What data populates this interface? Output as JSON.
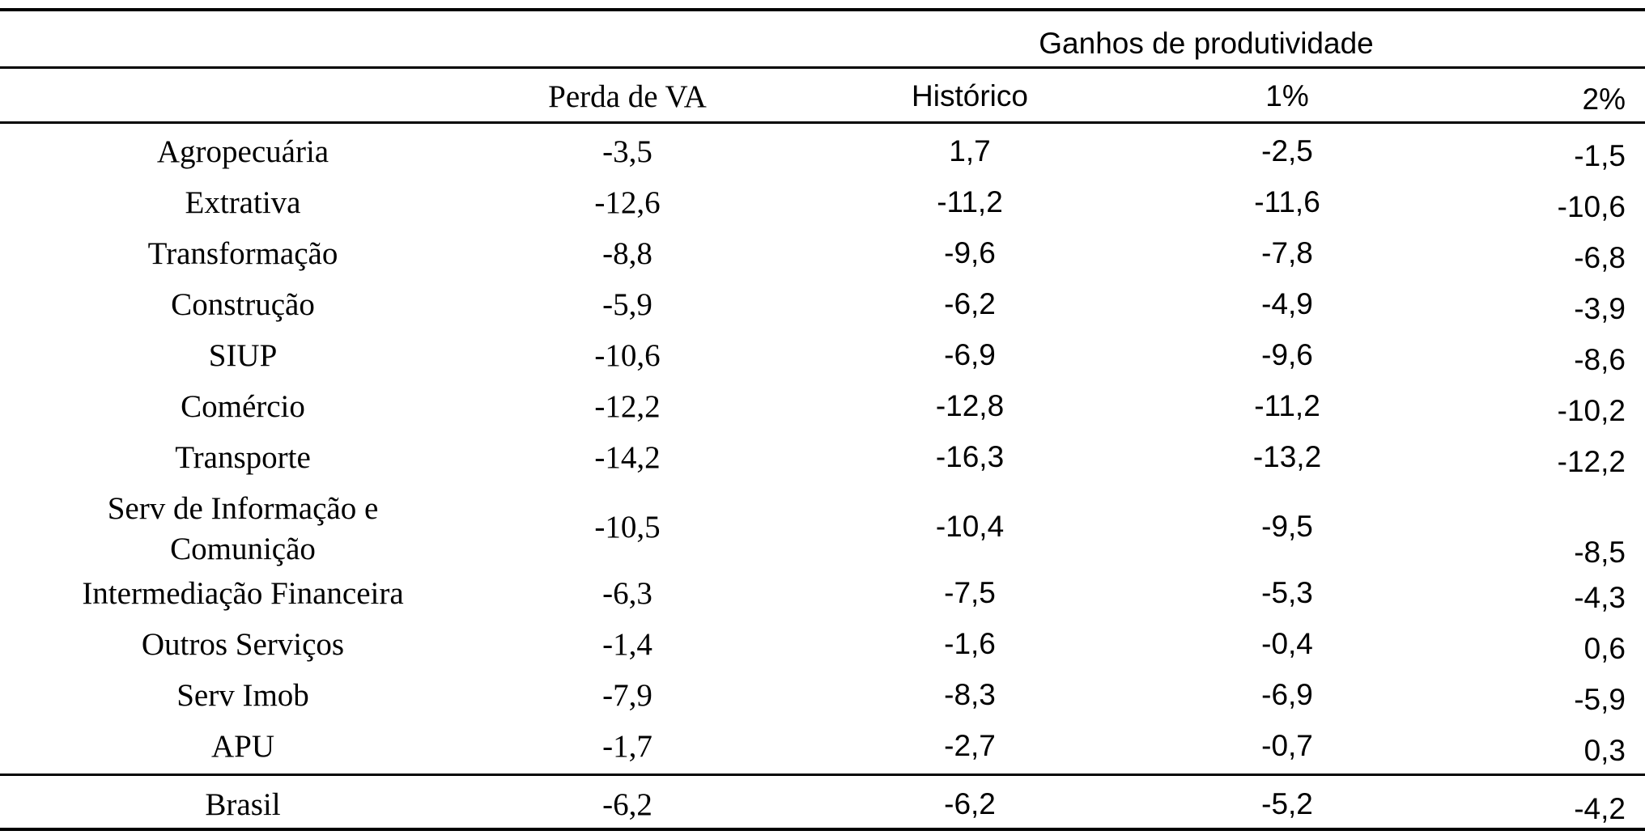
{
  "header": {
    "group_label": "Ganhos de produtividade",
    "columns": [
      "Perda de VA",
      "Histórico",
      "1%",
      "2%"
    ]
  },
  "rows": [
    {
      "label": "Agropecuária",
      "values": [
        "-3,5",
        "1,7",
        "-2,5",
        "-1,5"
      ]
    },
    {
      "label": "Extrativa",
      "values": [
        "-12,6",
        "-11,2",
        "-11,6",
        "-10,6"
      ]
    },
    {
      "label": "Transformação",
      "values": [
        "-8,8",
        "-9,6",
        "-7,8",
        "-6,8"
      ]
    },
    {
      "label": "Construção",
      "values": [
        "-5,9",
        "-6,2",
        "-4,9",
        "-3,9"
      ]
    },
    {
      "label": "SIUP",
      "values": [
        "-10,6",
        "-6,9",
        "-9,6",
        "-8,6"
      ]
    },
    {
      "label": "Comércio",
      "values": [
        "-12,2",
        "-12,8",
        "-11,2",
        "-10,2"
      ]
    },
    {
      "label": "Transporte",
      "values": [
        "-14,2",
        "-16,3",
        "-13,2",
        "-12,2"
      ]
    },
    {
      "label_line1": "Serv de Informação e",
      "label_line2": "Comunição",
      "values": [
        "-10,5",
        "-10,4",
        "-9,5",
        "-8,5"
      ]
    },
    {
      "label": "Intermediação Financeira",
      "values": [
        "-6,3",
        "-7,5",
        "-5,3",
        "-4,3"
      ]
    },
    {
      "label": "Outros Serviços",
      "values": [
        "-1,4",
        "-1,6",
        "-0,4",
        "0,6"
      ]
    },
    {
      "label": "Serv Imob",
      "values": [
        "-7,9",
        "-8,3",
        "-6,9",
        "-5,9"
      ]
    },
    {
      "label": "APU",
      "values": [
        "-1,7",
        "-2,7",
        "-0,7",
        "0,3"
      ]
    }
  ],
  "total": {
    "label": "Brasil",
    "values": [
      "-6,2",
      "-6,2",
      "-5,2",
      "-4,2"
    ]
  }
}
